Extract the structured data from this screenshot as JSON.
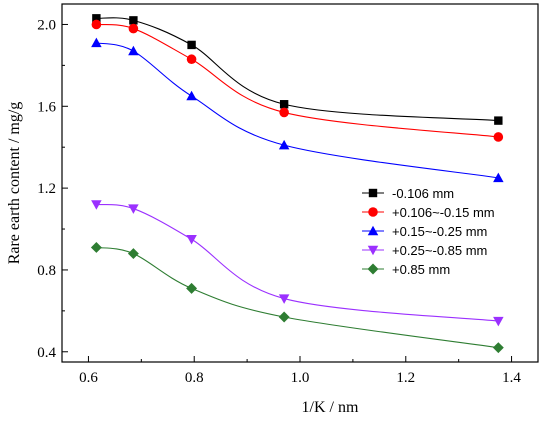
{
  "chart_data": {
    "type": "line",
    "xlabel": "1/K / nm",
    "ylabel": "Rare earth content / mg/g",
    "xlim": [
      0.55,
      1.45
    ],
    "ylim": [
      0.35,
      2.1
    ],
    "xticks": [
      0.6,
      0.8,
      1.0,
      1.2,
      1.4
    ],
    "yticks": [
      0.4,
      0.8,
      1.2,
      1.6,
      2.0
    ],
    "x_tick_labels": [
      "0.6",
      "0.8",
      "1.0",
      "1.2",
      "1.4"
    ],
    "y_tick_labels": [
      "0.4",
      "0.8",
      "1.2",
      "1.6",
      "2.0"
    ],
    "grid": false,
    "legend_position": "right",
    "x": [
      0.615,
      0.685,
      0.795,
      0.97,
      1.375
    ],
    "series": [
      {
        "name": "-0.106 mm",
        "marker": "square",
        "color": "#000000",
        "values": [
          2.03,
          2.02,
          1.9,
          1.61,
          1.53
        ]
      },
      {
        "name": "+0.106~-0.15 mm",
        "marker": "circle",
        "color": "#ff0000",
        "values": [
          2.0,
          1.98,
          1.83,
          1.57,
          1.45
        ]
      },
      {
        "name": "+0.15~-0.25 mm",
        "marker": "triangle-up",
        "color": "#0000ff",
        "values": [
          1.91,
          1.87,
          1.65,
          1.41,
          1.25
        ]
      },
      {
        "name": "+0.25~-0.85 mm",
        "marker": "triangle-down",
        "color": "#9b30ff",
        "values": [
          1.12,
          1.1,
          0.95,
          0.66,
          0.55
        ]
      },
      {
        "name": "+0.85 mm",
        "marker": "diamond",
        "color": "#2e7d32",
        "values": [
          0.91,
          0.88,
          0.71,
          0.57,
          0.42
        ]
      }
    ]
  }
}
